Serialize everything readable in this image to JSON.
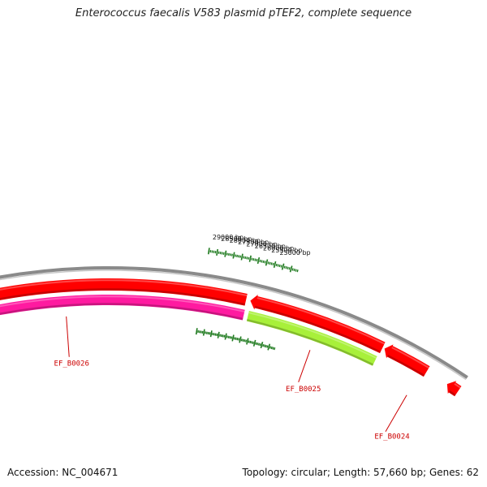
{
  "title": "Enterococcus faecalis V583 plasmid pTEF2, complete sequence",
  "accession": "Accession: NC_004671",
  "summary": "Topology: circular; Length: 57,660 bp; Genes: 62",
  "colors": {
    "backbone": "#8a8a8a",
    "tick": "#1e7a1e",
    "gene_red": "#ff0000",
    "gene_green": "#a8f03a",
    "gene_magenta": "#ff1aa0",
    "label": "#cc0000"
  },
  "bp_labels": [
    {
      "pos": 29000,
      "text": "29000 bp"
    },
    {
      "pos": 28500,
      "text": "28500 bp"
    },
    {
      "pos": 28000,
      "text": "28000 bp"
    },
    {
      "pos": 27500,
      "text": "27500 bp"
    },
    {
      "pos": 27000,
      "text": "27000 bp"
    },
    {
      "pos": 26500,
      "text": "26500 bp"
    },
    {
      "pos": 26000,
      "text": "26000 bp"
    },
    {
      "pos": 25500,
      "text": "25500 bp"
    },
    {
      "pos": 25000,
      "text": "25000 bp"
    }
  ],
  "genes": [
    {
      "id": "EF_B0024",
      "label": "EF_B0024",
      "strand": "minus",
      "color": "red"
    },
    {
      "id": "EF_B0025",
      "label": "EF_B0025",
      "strand": "plus",
      "color": "green"
    },
    {
      "id": "EF_B0026",
      "label": "EF_B0026",
      "strand": "plus",
      "color": "magenta"
    }
  ]
}
